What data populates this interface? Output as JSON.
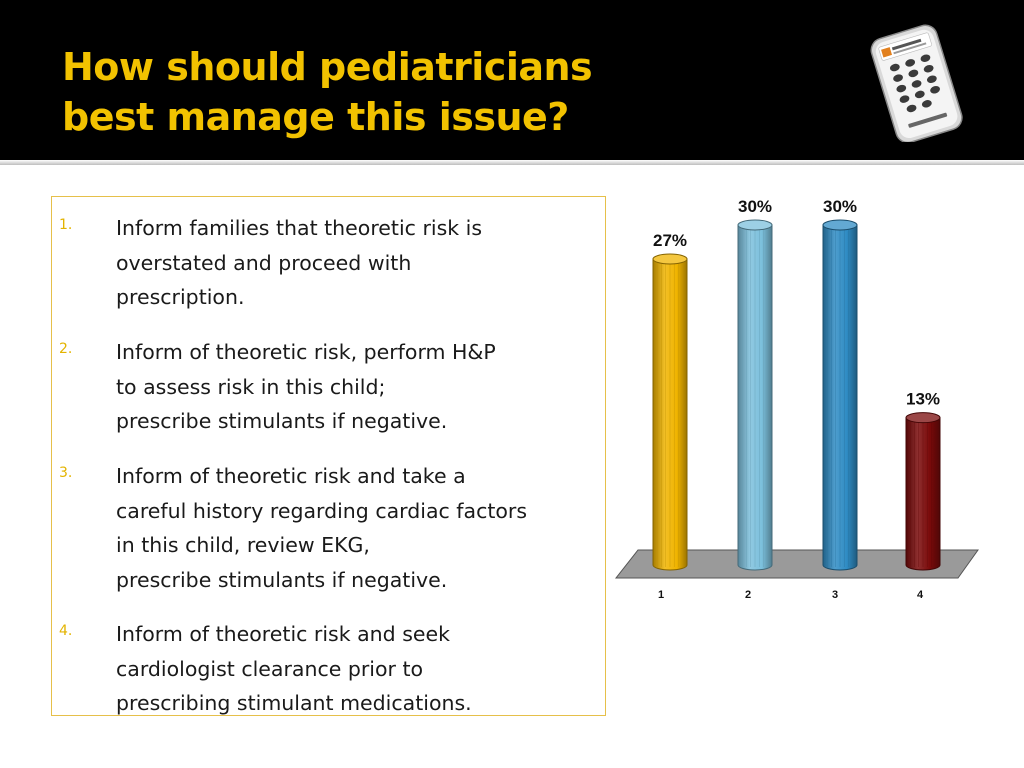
{
  "slide": {
    "title_lines": [
      "How should pediatricians",
      "best manage this issue?"
    ]
  },
  "options": [
    {
      "number": "1.",
      "lines": [
        "Inform families that theoretic risk is",
        "overstated and proceed with",
        "prescription."
      ]
    },
    {
      "number": "2.",
      "lines": [
        "Inform of theoretic risk, perform H&P",
        "to assess risk in this child;",
        "prescribe stimulants if negative."
      ]
    },
    {
      "number": "3.",
      "lines": [
        "Inform of theoretic risk and take a",
        "careful history regarding cardiac factors",
        "in this child, review EKG,",
        "prescribe stimulants if negative."
      ]
    },
    {
      "number": "4.",
      "lines": [
        "Inform of theoretic risk and seek",
        "cardiologist clearance prior to",
        "prescribing stimulant medications."
      ]
    }
  ],
  "remote": {
    "icon": "response-clicker-icon"
  },
  "colors": {
    "title": "#f2c200",
    "number": "#e3b300",
    "box_border": "#e6c04a"
  },
  "chart_data": {
    "type": "bar",
    "categories": [
      "1",
      "2",
      "3",
      "4"
    ],
    "values": [
      27,
      30,
      30,
      13
    ],
    "value_labels": [
      "27%",
      "30%",
      "30%",
      "13%"
    ],
    "colors": [
      "#f0b400",
      "#7cc0dc",
      "#2f8cc4",
      "#7a0a0a"
    ],
    "ylim": [
      0,
      30
    ],
    "grid": false,
    "legend": "none"
  }
}
